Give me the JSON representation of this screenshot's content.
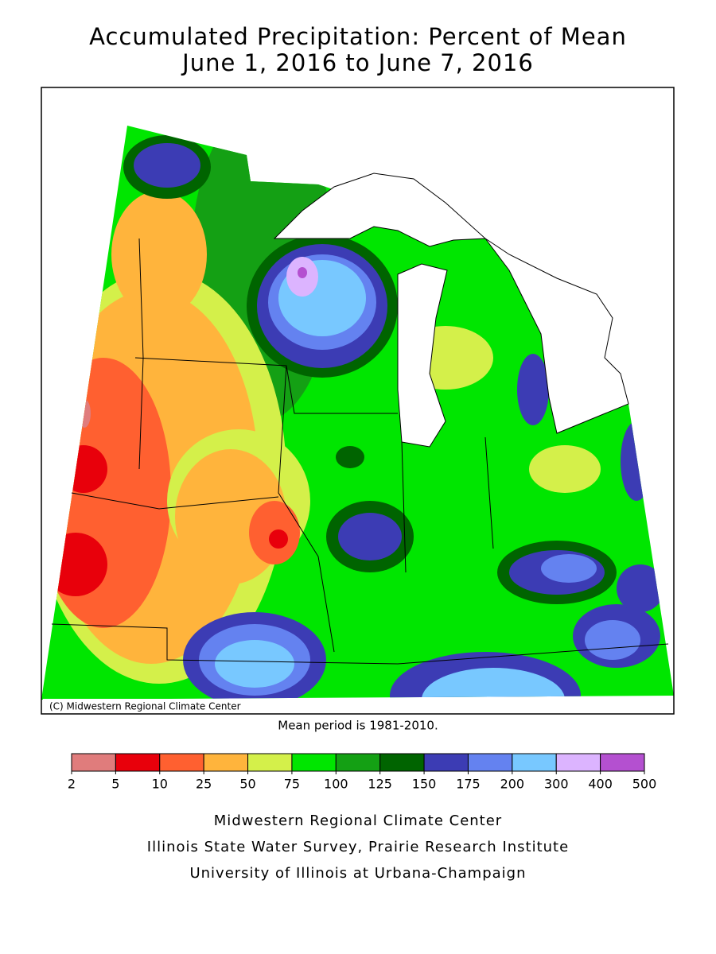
{
  "title": [
    "Accumulated Precipitation: Percent of Mean",
    "June 1, 2016 to June 7, 2016"
  ],
  "copyright": "(C) Midwestern Regional Climate Center",
  "note": "Mean period is 1981-2010.",
  "legend": {
    "breaks": [
      2,
      5,
      10,
      25,
      50,
      75,
      100,
      125,
      150,
      175,
      200,
      300,
      400,
      500
    ],
    "colors": [
      "#e07c7c",
      "#e8000b",
      "#ff6030",
      "#ffb43c",
      "#d4f04a",
      "#00e600",
      "#14a014",
      "#006400",
      "#3c3cb4",
      "#6482f0",
      "#78c8ff",
      "#dcb4ff",
      "#b450d0"
    ]
  },
  "credits": [
    "Midwestern Regional Climate Center",
    "Illinois State Water Survey, Prairie Research Institute",
    "University of Illinois at Urbana-Champaign"
  ]
}
